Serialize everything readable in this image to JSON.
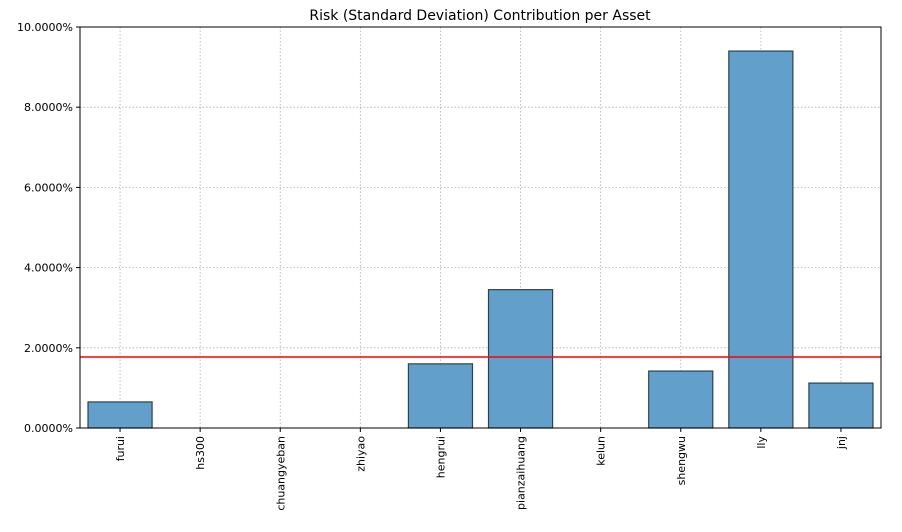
{
  "chart_data": {
    "type": "bar",
    "title": "Risk (Standard Deviation) Contribution per Asset",
    "xlabel": "",
    "ylabel": "",
    "categories": [
      "furui",
      "hs300",
      "chuangyeban",
      "zhiyao",
      "hengrui",
      "pianzaihuang",
      "kelun",
      "shengwu",
      "lly",
      "jnj"
    ],
    "values": [
      0.0065,
      0.0,
      0.0,
      0.0,
      0.016,
      0.0345,
      0.0,
      0.0142,
      0.094,
      0.0112
    ],
    "ylim": [
      0,
      0.1
    ],
    "yticks": [
      0,
      0.02,
      0.04,
      0.06,
      0.08,
      0.1
    ],
    "ytick_labels": [
      "0.0000%",
      "2.0000%",
      "4.0000%",
      "6.0000%",
      "8.0000%",
      "10.0000%"
    ],
    "reference_line": 0.0177,
    "grid": true,
    "bar_color": "#62a0cb",
    "bar_edge_color": "#2f4050",
    "line_color": "#ff0000"
  }
}
